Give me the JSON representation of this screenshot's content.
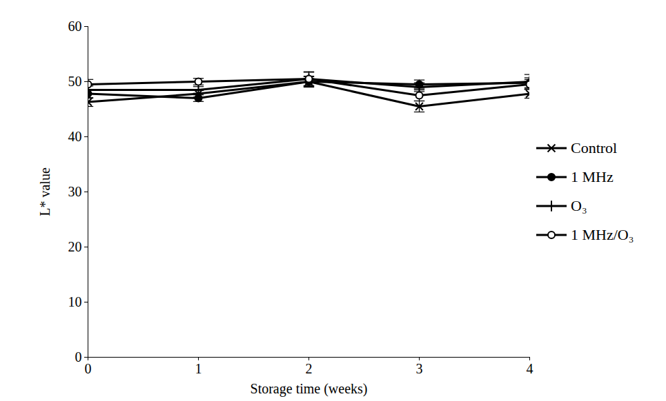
{
  "chart_data": {
    "type": "line",
    "xlabel": "Storage time (weeks)",
    "ylabel": "L* value",
    "x": [
      0,
      1,
      2,
      3,
      4
    ],
    "xlim": [
      0,
      4
    ],
    "xticks": [
      0,
      1,
      2,
      3,
      4
    ],
    "ylim": [
      0,
      60
    ],
    "yticks": [
      0,
      10,
      20,
      30,
      40,
      50,
      60
    ],
    "grid": false,
    "legend": "right",
    "series": [
      {
        "name": "Control",
        "color": "#000000",
        "marker": "times",
        "line_style": "solid",
        "values": [
          46.3,
          47.8,
          50.0,
          45.5,
          47.8
        ],
        "errors": [
          0.8,
          0.6,
          1.0,
          1.0,
          0.8
        ]
      },
      {
        "name": "1 MHz",
        "color": "#000000",
        "marker": "circle",
        "line_style": "solid",
        "values": [
          47.8,
          47.0,
          50.0,
          49.5,
          49.8
        ],
        "errors": [
          0.8,
          0.6,
          0.9,
          0.8,
          0.9
        ]
      },
      {
        "name": "O₃",
        "color": "#000000",
        "marker": "plus",
        "line_style": "solid",
        "values": [
          48.5,
          48.5,
          50.5,
          49.0,
          50.0
        ],
        "errors": [
          0.7,
          0.6,
          1.2,
          0.8,
          1.3
        ]
      },
      {
        "name": "1 MHz/O₃",
        "color": "#000000",
        "marker": "open_circle",
        "line_style": "solid",
        "values": [
          49.5,
          50.0,
          50.5,
          47.5,
          49.5
        ],
        "errors": [
          0.9,
          0.6,
          1.3,
          1.0,
          0.9
        ]
      }
    ]
  }
}
